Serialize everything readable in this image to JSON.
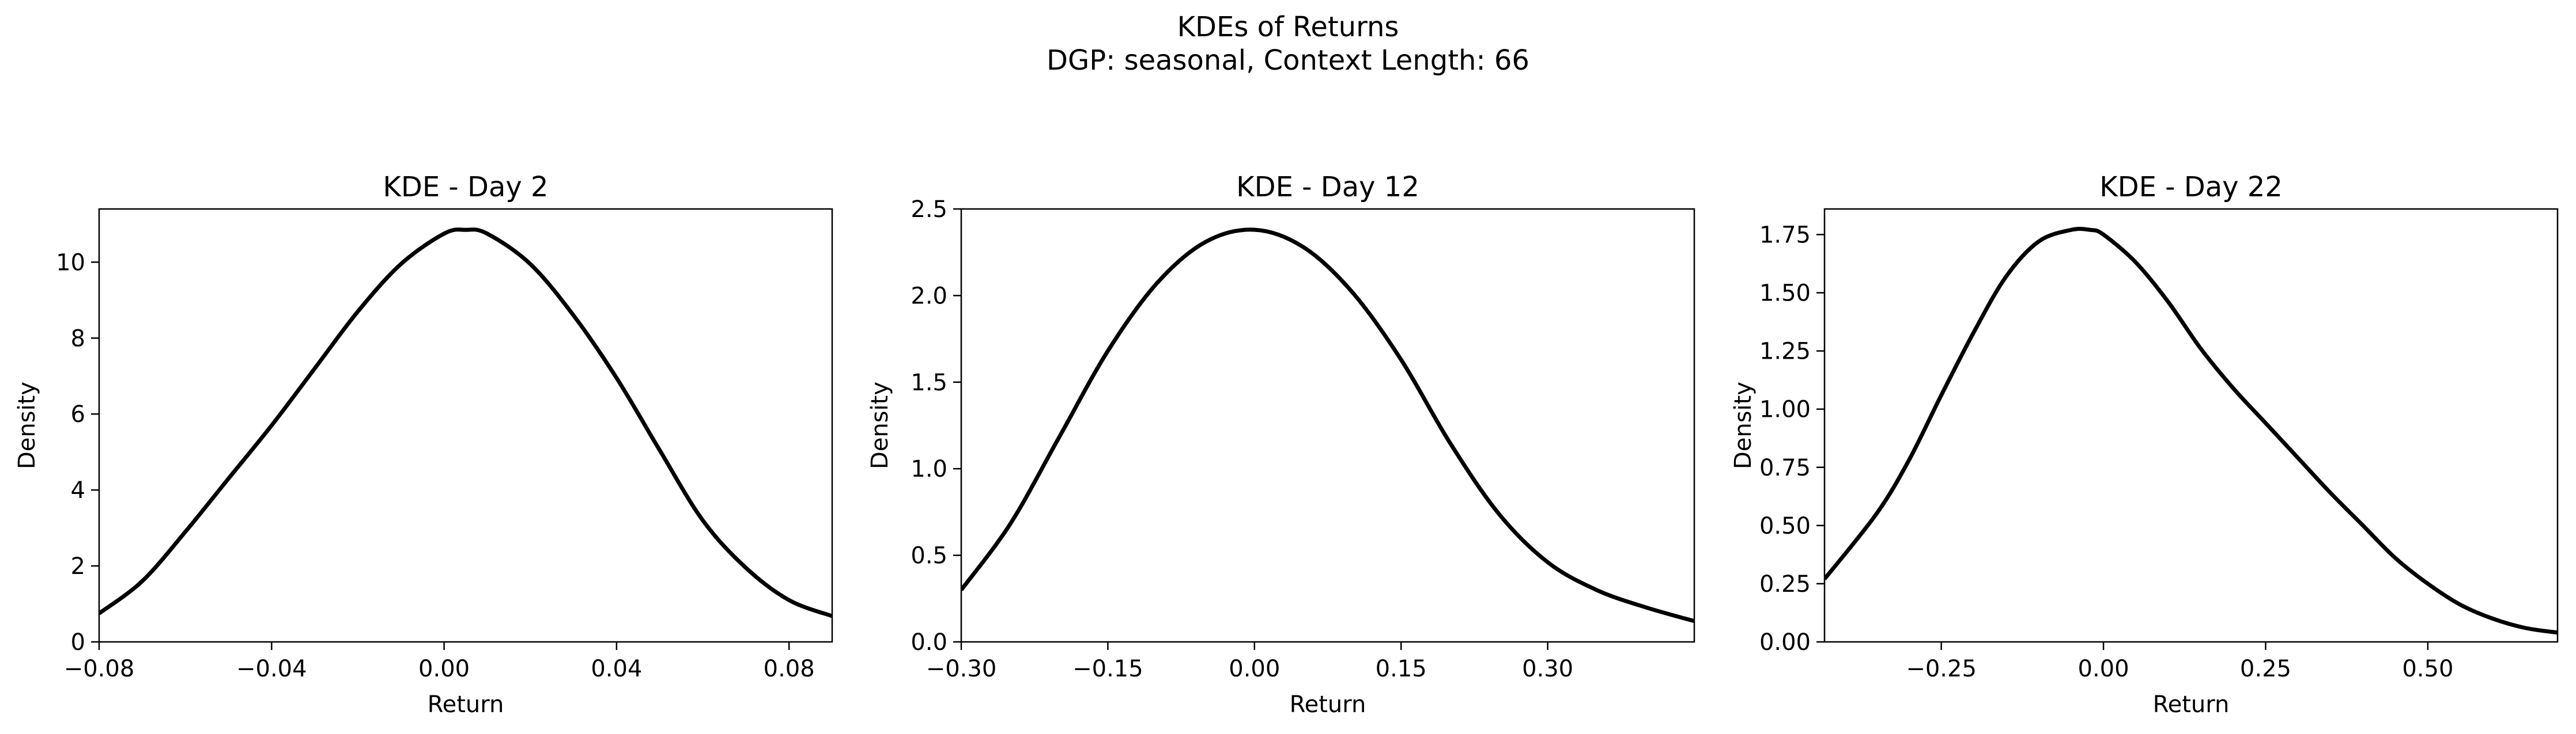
{
  "figure": {
    "suptitle_line1": "KDEs of Returns",
    "suptitle_line2": "DGP: seasonal, Context Length: 66"
  },
  "chart_data": [
    {
      "type": "line",
      "title": "KDE - Day 2",
      "xlabel": "Return",
      "ylabel": "Density",
      "xlim": [
        -0.08,
        0.09
      ],
      "ylim": [
        0,
        11.4
      ],
      "xticks": [
        -0.08,
        -0.04,
        0.0,
        0.04,
        0.08
      ],
      "xtick_labels": [
        "−0.08",
        "−0.04",
        "0.00",
        "0.04",
        "0.08"
      ],
      "yticks": [
        0,
        2,
        4,
        6,
        8,
        10
      ],
      "ytick_labels": [
        "0",
        "2",
        "4",
        "6",
        "8",
        "10"
      ],
      "line_color": "#000000",
      "series": [
        {
          "x": [
            -0.08,
            -0.07,
            -0.06,
            -0.05,
            -0.04,
            -0.03,
            -0.02,
            -0.01,
            0.0,
            0.005,
            0.01,
            0.02,
            0.03,
            0.04,
            0.05,
            0.06,
            0.07,
            0.08,
            0.09
          ],
          "y": [
            0.75,
            1.6,
            2.9,
            4.3,
            5.7,
            7.2,
            8.7,
            9.95,
            10.75,
            10.85,
            10.75,
            9.95,
            8.6,
            6.95,
            5.05,
            3.2,
            1.95,
            1.1,
            0.68
          ]
        }
      ]
    },
    {
      "type": "line",
      "title": "KDE - Day 12",
      "xlabel": "Return",
      "ylabel": "Density",
      "xlim": [
        -0.3,
        0.45
      ],
      "ylim": [
        0,
        2.5
      ],
      "xticks": [
        -0.3,
        -0.15,
        0.0,
        0.15,
        0.3
      ],
      "xtick_labels": [
        "−0.30",
        "−0.15",
        "0.00",
        "0.15",
        "0.30"
      ],
      "yticks": [
        0.0,
        0.5,
        1.0,
        1.5,
        2.0,
        2.5
      ],
      "ytick_labels": [
        "0.0",
        "0.5",
        "1.0",
        "1.5",
        "2.0",
        "2.5"
      ],
      "line_color": "#000000",
      "series": [
        {
          "x": [
            -0.3,
            -0.25,
            -0.2,
            -0.15,
            -0.1,
            -0.05,
            0.0,
            0.05,
            0.1,
            0.15,
            0.2,
            0.25,
            0.3,
            0.35,
            0.4,
            0.45
          ],
          "y": [
            0.3,
            0.68,
            1.18,
            1.68,
            2.07,
            2.31,
            2.38,
            2.28,
            2.02,
            1.63,
            1.15,
            0.74,
            0.46,
            0.3,
            0.2,
            0.12
          ]
        }
      ]
    },
    {
      "type": "line",
      "title": "KDE - Day 22",
      "xlabel": "Return",
      "ylabel": "Density",
      "xlim": [
        -0.43,
        0.7
      ],
      "ylim": [
        0,
        1.86
      ],
      "xticks": [
        -0.25,
        0.0,
        0.25,
        0.5
      ],
      "xtick_labels": [
        "−0.25",
        "0.00",
        "0.25",
        "0.50"
      ],
      "yticks": [
        0.0,
        0.25,
        0.5,
        0.75,
        1.0,
        1.25,
        1.5,
        1.75
      ],
      "ytick_labels": [
        "0.00",
        "0.25",
        "0.50",
        "0.75",
        "1.00",
        "1.25",
        "1.50",
        "1.75"
      ],
      "line_color": "#000000",
      "series": [
        {
          "x": [
            -0.43,
            -0.35,
            -0.3,
            -0.25,
            -0.2,
            -0.15,
            -0.1,
            -0.05,
            -0.02,
            0.0,
            0.05,
            0.1,
            0.15,
            0.2,
            0.25,
            0.3,
            0.35,
            0.4,
            0.45,
            0.5,
            0.55,
            0.6,
            0.65,
            0.7
          ],
          "y": [
            0.27,
            0.55,
            0.78,
            1.06,
            1.33,
            1.57,
            1.72,
            1.77,
            1.77,
            1.75,
            1.63,
            1.46,
            1.26,
            1.09,
            0.94,
            0.79,
            0.64,
            0.5,
            0.36,
            0.25,
            0.16,
            0.1,
            0.06,
            0.04
          ]
        }
      ]
    }
  ]
}
